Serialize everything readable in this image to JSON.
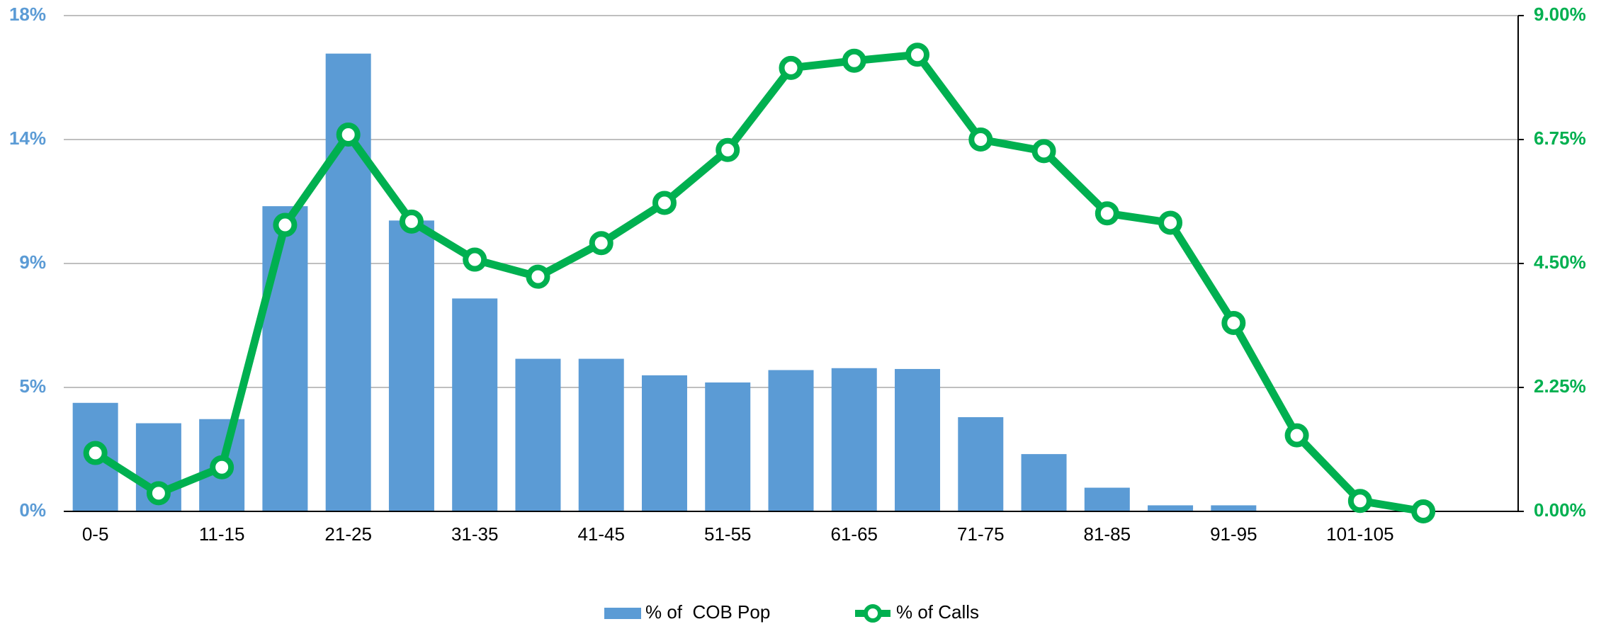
{
  "chart_data": {
    "type": "bar_line",
    "categories": [
      "0-5",
      null,
      "11-15",
      null,
      "21-25",
      null,
      "31-35",
      null,
      "41-45",
      null,
      "51-55",
      null,
      "61-65",
      null,
      "71-75",
      null,
      "81-85",
      null,
      "91-95",
      null,
      "101-105",
      null
    ],
    "series": [
      {
        "name": "% of  COB Pop",
        "type": "bar",
        "color": "#5b9bd5",
        "values": [
          3.94,
          3.2,
          3.35,
          11.08,
          16.62,
          10.56,
          7.73,
          5.54,
          5.54,
          4.94,
          4.68,
          5.13,
          5.2,
          5.17,
          3.42,
          2.08,
          0.86,
          0.22,
          0.22,
          0,
          0,
          0
        ]
      },
      {
        "name": "% of Calls",
        "type": "line",
        "axis": "y2",
        "color": "#00b050",
        "values": [
          1.06,
          0.33,
          0.8,
          5.2,
          6.84,
          5.26,
          4.57,
          4.26,
          4.87,
          5.6,
          6.56,
          8.05,
          8.18,
          8.29,
          6.75,
          6.54,
          5.41,
          5.24,
          3.42,
          1.38,
          0.19,
          0.0
        ]
      }
    ],
    "ylim": [
      0,
      18
    ],
    "yticks": [
      {
        "value": 0,
        "label": "0%"
      },
      {
        "value": 4.5,
        "label": "5%"
      },
      {
        "value": 9,
        "label": "9%"
      },
      {
        "value": 13.5,
        "label": "14%"
      },
      {
        "value": 18,
        "label": "18%"
      }
    ],
    "y2lim": [
      0,
      9
    ],
    "y2ticks": [
      {
        "value": 0,
        "label": "0.00%"
      },
      {
        "value": 2.25,
        "label": "2.25%"
      },
      {
        "value": 4.5,
        "label": "4.50%"
      },
      {
        "value": 6.75,
        "label": "6.75%"
      },
      {
        "value": 9,
        "label": "9.00%"
      }
    ],
    "grid": true,
    "legend": "bottom"
  }
}
